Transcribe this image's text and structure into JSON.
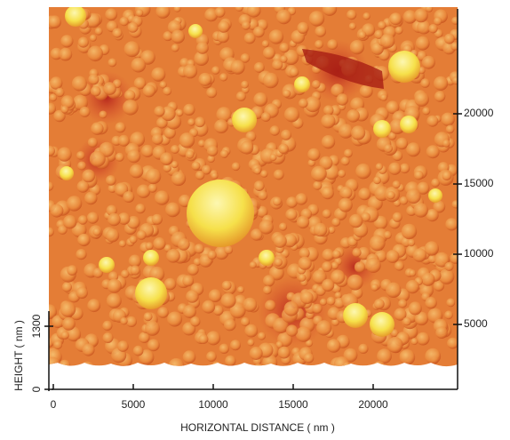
{
  "x_axis": {
    "title": "HORIZONTAL DISTANCE ( nm )",
    "ticks": [
      0,
      5000,
      10000,
      15000,
      20000
    ]
  },
  "y_axis": {
    "ticks": [
      5000,
      10000,
      15000,
      20000
    ]
  },
  "height_axis": {
    "title": "HEIGHT ( nm )",
    "ticks": [
      0,
      1300
    ]
  }
}
